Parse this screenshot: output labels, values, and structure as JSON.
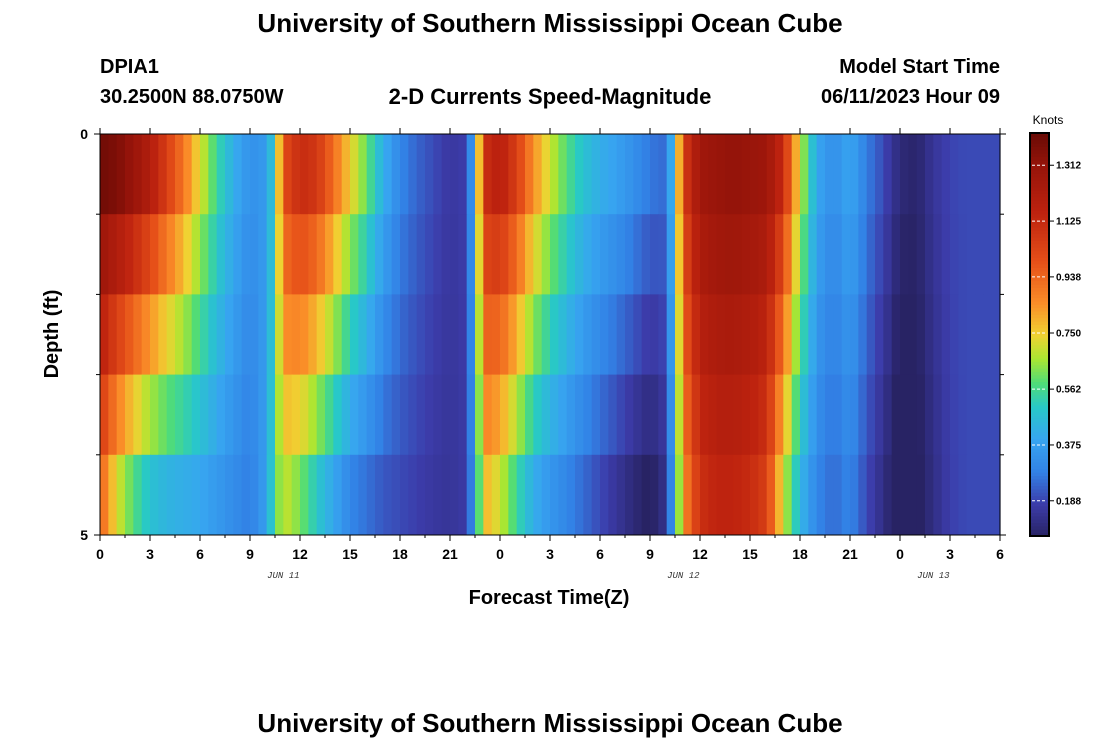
{
  "header": {
    "title": "University of Southern Mississippi Ocean Cube",
    "station_id": "DPIA1",
    "station_coords": "30.2500N  88.0750W",
    "plot_subtitle": "2-D Currents Speed-Magnitude",
    "model_start_label": "Model Start Time",
    "model_start_value": "06/11/2023 Hour 09",
    "bottom_title": "University of Southern Mississippi Ocean Cube"
  },
  "chart_data": {
    "type": "heatmap",
    "title": "2-D Currents Speed-Magnitude",
    "xlabel": "Forecast Time(Z)",
    "ylabel": "Depth (ft)",
    "x_tick_labels": [
      "0",
      "3",
      "6",
      "9",
      "12",
      "15",
      "18",
      "21",
      "0",
      "3",
      "6",
      "9",
      "12",
      "15",
      "18",
      "21",
      "0",
      "3",
      "6"
    ],
    "x_hours_from_start": [
      0,
      3,
      6,
      9,
      12,
      15,
      18,
      21,
      24,
      27,
      30,
      33,
      36,
      39,
      42,
      45,
      48,
      51,
      54
    ],
    "date_labels": [
      {
        "text": "JUN 11",
        "hour": 11
      },
      {
        "text": "JUN 12",
        "hour": 35
      },
      {
        "text": "JUN 13",
        "hour": 50
      }
    ],
    "y_tick_labels": [
      "0",
      "5"
    ],
    "ylim": [
      0,
      5
    ],
    "y_inverted": true,
    "colorbar": {
      "unit": "Knots",
      "ticks": [
        "0.188",
        "0.375",
        "0.562",
        "0.750",
        "0.938",
        "1.125",
        "1.312"
      ],
      "tick_values": [
        0.188,
        0.375,
        0.562,
        0.75,
        0.938,
        1.125,
        1.312
      ],
      "range": [
        0.07,
        1.42
      ]
    },
    "time_step_hours": 1,
    "layer_depths_ft": [
      0,
      1,
      2,
      3,
      4,
      5
    ],
    "speed_profile": {
      "times_hours_from_start": [
        0,
        1,
        2,
        3,
        4,
        5,
        6,
        7,
        8,
        9,
        10,
        10.5,
        11,
        12,
        13,
        14,
        15,
        16,
        17,
        18,
        19,
        20,
        21,
        22,
        22.5,
        23,
        24,
        25,
        26,
        27,
        28,
        29,
        30,
        31,
        32,
        33,
        34,
        34.5,
        35,
        36,
        37,
        38,
        39,
        40,
        41,
        42,
        43,
        44,
        45,
        46,
        47,
        48,
        49,
        50,
        51,
        52,
        53,
        54
      ],
      "surface_speed_knots": [
        1.4,
        1.37,
        1.3,
        1.2,
        1.05,
        0.9,
        0.72,
        0.55,
        0.42,
        0.33,
        0.36,
        0.55,
        1.0,
        1.12,
        1.08,
        0.92,
        0.75,
        0.6,
        0.42,
        0.3,
        0.24,
        0.2,
        0.16,
        0.18,
        0.45,
        1.1,
        1.18,
        1.05,
        0.85,
        0.7,
        0.58,
        0.48,
        0.42,
        0.38,
        0.33,
        0.27,
        0.25,
        0.55,
        1.05,
        1.27,
        1.3,
        1.32,
        1.3,
        1.28,
        1.12,
        0.7,
        0.4,
        0.32,
        0.4,
        0.28,
        0.2,
        0.1,
        0.08,
        0.15,
        0.19,
        0.2,
        0.2,
        0.2
      ],
      "bottom_speed_knots": [
        0.95,
        0.72,
        0.58,
        0.48,
        0.44,
        0.42,
        0.4,
        0.36,
        0.32,
        0.28,
        0.38,
        0.58,
        0.7,
        0.62,
        0.5,
        0.4,
        0.3,
        0.26,
        0.22,
        0.2,
        0.18,
        0.16,
        0.15,
        0.17,
        0.38,
        0.8,
        0.7,
        0.55,
        0.42,
        0.35,
        0.3,
        0.25,
        0.2,
        0.15,
        0.1,
        0.06,
        0.14,
        0.45,
        0.85,
        1.1,
        1.15,
        1.15,
        1.12,
        1.05,
        0.7,
        0.45,
        0.3,
        0.25,
        0.3,
        0.2,
        0.12,
        0.02,
        0.05,
        0.12,
        0.18,
        0.2,
        0.2,
        0.2
      ]
    }
  }
}
